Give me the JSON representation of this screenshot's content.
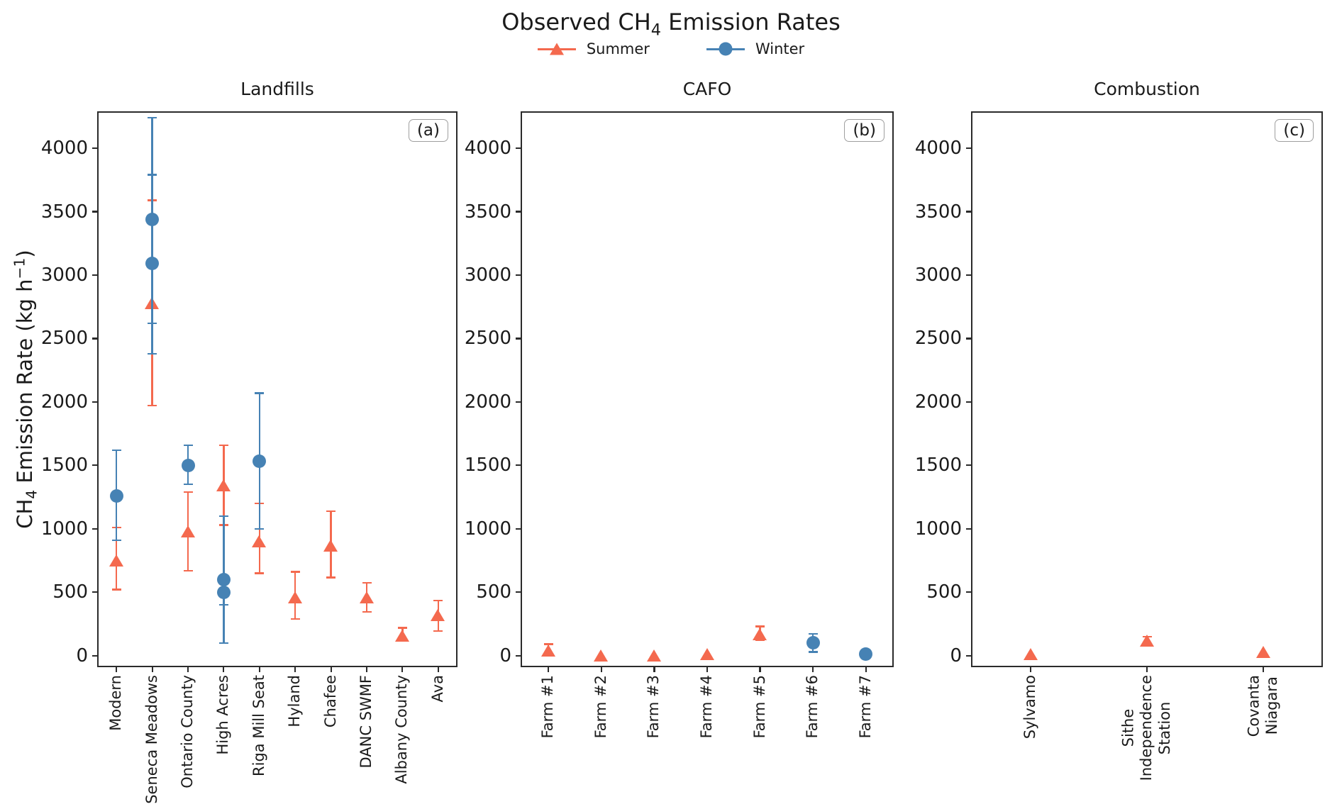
{
  "figure": {
    "title": {
      "pre": "Observed CH",
      "sub": "4",
      "post": " Emission Rates"
    },
    "ylabel": {
      "pre": "CH",
      "sub": "4",
      "mid": " Emission Rate (kg h",
      "sup": "−1",
      "post": ")"
    },
    "colors": {
      "summer": "#f4694e",
      "winter": "#4682b4",
      "spine": "#2b2b2b",
      "text": "#1a1a1a"
    }
  },
  "chart_data": [
    {
      "type": "scatter",
      "panel_label": "(a)",
      "title": "Landfills",
      "ylim": [
        -80,
        4280
      ],
      "yticks": [
        0,
        500,
        1000,
        1500,
        2000,
        2500,
        3000,
        3500,
        4000
      ],
      "grid": false,
      "categories": [
        "Modern",
        "Seneca Meadows",
        "Ontario County",
        "High Acres",
        "Riga Mill Seat",
        "Hyland",
        "Chafee",
        "DANC SWMF",
        "Albany County",
        "Ava"
      ],
      "series": [
        {
          "name": "Summer",
          "marker": "triangle",
          "color": "#f4694e",
          "points": [
            {
              "x": 0,
              "y": 750,
              "lo": 520,
              "hi": 1010
            },
            {
              "x": 1,
              "y": 2780,
              "lo": 1970,
              "hi": 3590
            },
            {
              "x": 2,
              "y": 980,
              "lo": 670,
              "hi": 1290
            },
            {
              "x": 3,
              "y": 1340,
              "lo": 1030,
              "hi": 1660
            },
            {
              "x": 4,
              "y": 900,
              "lo": 650,
              "hi": 1200
            },
            {
              "x": 5,
              "y": 460,
              "lo": 290,
              "hi": 660
            },
            {
              "x": 6,
              "y": 870,
              "lo": 615,
              "hi": 1140
            },
            {
              "x": 7,
              "y": 460,
              "lo": 345,
              "hi": 575
            },
            {
              "x": 8,
              "y": 160,
              "lo": 115,
              "hi": 220
            },
            {
              "x": 9,
              "y": 320,
              "lo": 195,
              "hi": 435
            }
          ]
        },
        {
          "name": "Winter",
          "marker": "circle",
          "color": "#4682b4",
          "points": [
            {
              "x": 0,
              "y": 1260,
              "lo": 910,
              "hi": 1620
            },
            {
              "x": 1,
              "y": 3440,
              "lo": 2620,
              "hi": 4240
            },
            {
              "x": 1,
              "y": 3090,
              "lo": 2380,
              "hi": 3790
            },
            {
              "x": 2,
              "y": 1500,
              "lo": 1350,
              "hi": 1660
            },
            {
              "x": 3,
              "y": 600,
              "lo": 100,
              "hi": 1100
            },
            {
              "x": 3,
              "y": 500,
              "lo": 400,
              "hi": 600
            },
            {
              "x": 4,
              "y": 1530,
              "lo": 1000,
              "hi": 2070
            }
          ]
        }
      ]
    },
    {
      "type": "scatter",
      "panel_label": "(b)",
      "title": "CAFO",
      "ylim": [
        -80,
        4280
      ],
      "yticks": [
        0,
        500,
        1000,
        1500,
        2000,
        2500,
        3000,
        3500,
        4000
      ],
      "grid": false,
      "categories": [
        "Farm #1",
        "Farm #2",
        "Farm #3",
        "Farm #4",
        "Farm #5",
        "Farm #6",
        "Farm #7"
      ],
      "series": [
        {
          "name": "Summer",
          "marker": "triangle",
          "color": "#f4694e",
          "points": [
            {
              "x": 0,
              "y": 40,
              "lo": 10,
              "hi": 90
            },
            {
              "x": 1,
              "y": 0
            },
            {
              "x": 2,
              "y": 0
            },
            {
              "x": 3,
              "y": 10
            },
            {
              "x": 4,
              "y": 170,
              "lo": 120,
              "hi": 230
            }
          ]
        },
        {
          "name": "Winter",
          "marker": "circle",
          "color": "#4682b4",
          "points": [
            {
              "x": 5,
              "y": 100,
              "lo": 30,
              "hi": 170
            },
            {
              "x": 6,
              "y": 10
            }
          ]
        }
      ]
    },
    {
      "type": "scatter",
      "panel_label": "(c)",
      "title": "Combustion",
      "ylim": [
        -80,
        4280
      ],
      "yticks": [
        0,
        500,
        1000,
        1500,
        2000,
        2500,
        3000,
        3500,
        4000
      ],
      "grid": false,
      "categories": [
        "Sylvamo",
        "Sithe\nIndependence\nStation",
        "Covanta\nNiagara"
      ],
      "series": [
        {
          "name": "Summer",
          "marker": "triangle",
          "color": "#f4694e",
          "points": [
            {
              "x": 0,
              "y": 10
            },
            {
              "x": 1,
              "y": 120,
              "lo": 90,
              "hi": 150
            },
            {
              "x": 2,
              "y": 30
            }
          ]
        }
      ]
    }
  ]
}
